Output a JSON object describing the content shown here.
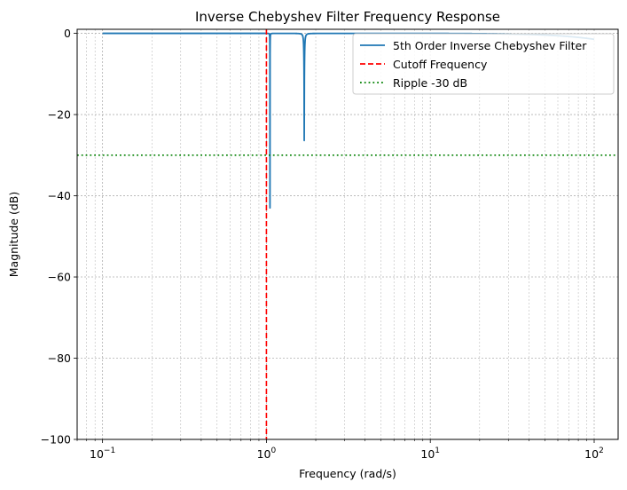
{
  "chart_data": {
    "type": "line",
    "title": "Inverse Chebyshev Filter Frequency Response",
    "xlabel": "Frequency (rad/s)",
    "ylabel": "Magnitude (dB)",
    "xscale": "log",
    "xlim": [
      0.07,
      140
    ],
    "ylim": [
      -100,
      1
    ],
    "x_ticks": [
      {
        "value": 0.1,
        "base": "10",
        "exp": "−1"
      },
      {
        "value": 1,
        "base": "10",
        "exp": "0"
      },
      {
        "value": 10,
        "base": "10",
        "exp": "1"
      },
      {
        "value": 100,
        "base": "10",
        "exp": "2"
      }
    ],
    "y_ticks": [
      {
        "value": 0,
        "label": "0"
      },
      {
        "value": -20,
        "label": "−20"
      },
      {
        "value": -40,
        "label": "−40"
      },
      {
        "value": -60,
        "label": "−60"
      },
      {
        "value": -80,
        "label": "−80"
      },
      {
        "value": -100,
        "label": "−100"
      }
    ],
    "grid": true,
    "legend_position": "top-right",
    "series": [
      {
        "name": "5th Order Inverse Chebyshev Filter",
        "color": "#1f77b4",
        "style": "solid",
        "filter": {
          "order": 5,
          "stopband_attenuation_db": 30,
          "stopband_edge": 1.0,
          "x_min": 0.1,
          "x_max": 100
        }
      }
    ],
    "reference_lines": [
      {
        "name": "Cutoff Frequency",
        "orientation": "vertical",
        "value": 1,
        "color": "#ff0000",
        "style": "dashed"
      },
      {
        "name": "Ripple -30 dB",
        "orientation": "horizontal",
        "value": -30,
        "color": "#008000",
        "style": "dotted"
      }
    ]
  }
}
